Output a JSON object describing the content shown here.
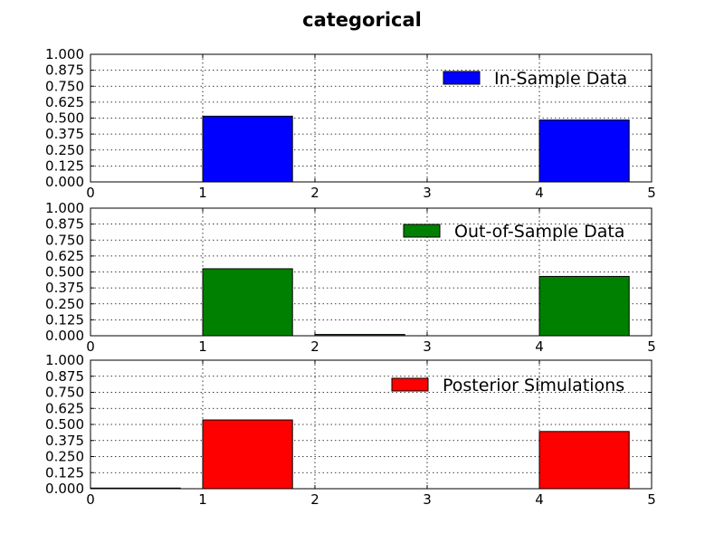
{
  "chart_data": {
    "title": "categorical",
    "type": "bar",
    "grid": true,
    "legend_placement": "top-right",
    "xlim": [
      0,
      5
    ],
    "ylim": [
      0,
      1
    ],
    "x_ticks": [
      "0",
      "1",
      "2",
      "3",
      "4",
      "5"
    ],
    "y_ticks": [
      "0.000",
      "0.125",
      "0.250",
      "0.375",
      "0.500",
      "0.625",
      "0.750",
      "0.875",
      "1.000"
    ],
    "bar_width": 0.8,
    "panels": [
      {
        "series_name": "In-Sample Data",
        "color": "#0000ff",
        "bars": [
          {
            "x": 0,
            "value": 0.0
          },
          {
            "x": 1,
            "value": 0.515
          },
          {
            "x": 2,
            "value": 0.0
          },
          {
            "x": 3,
            "value": 0.0
          },
          {
            "x": 4,
            "value": 0.485
          }
        ]
      },
      {
        "series_name": "Out-of-Sample Data",
        "color": "#008000",
        "bars": [
          {
            "x": 0,
            "value": 0.0
          },
          {
            "x": 1,
            "value": 0.525
          },
          {
            "x": 2,
            "value": 0.01
          },
          {
            "x": 3,
            "value": 0.0
          },
          {
            "x": 4,
            "value": 0.465
          }
        ]
      },
      {
        "series_name": "Posterior Simulations",
        "color": "#ff0000",
        "bars": [
          {
            "x": 0,
            "value": 0.005
          },
          {
            "x": 1,
            "value": 0.535
          },
          {
            "x": 2,
            "value": 0.0
          },
          {
            "x": 3,
            "value": 0.0
          },
          {
            "x": 4,
            "value": 0.445
          }
        ]
      }
    ]
  }
}
